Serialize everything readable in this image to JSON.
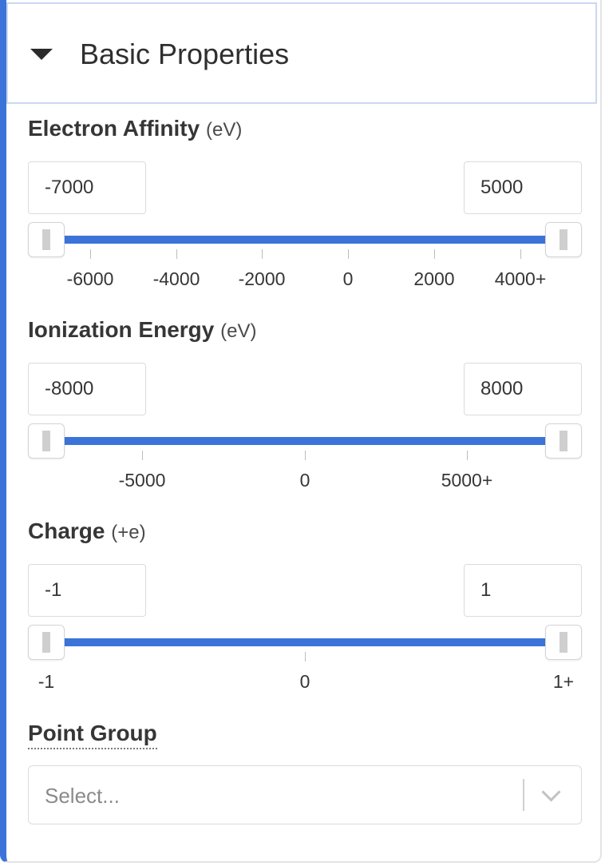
{
  "header": {
    "title": "Basic Properties"
  },
  "electron_affinity": {
    "label": "Electron Affinity",
    "unit": "(eV)",
    "min": "-7000",
    "max": "5000",
    "ticks": [
      "-6000",
      "-4000",
      "-2000",
      "0",
      "2000",
      "4000+"
    ]
  },
  "ionization_energy": {
    "label": "Ionization Energy",
    "unit": "(eV)",
    "min": "-8000",
    "max": "8000",
    "ticks": [
      "-5000",
      "0",
      "5000+"
    ]
  },
  "charge": {
    "label": "Charge",
    "unit": "(+e)",
    "min": "-1",
    "max": "1",
    "ticks": [
      "-1",
      "0",
      "1+"
    ]
  },
  "point_group": {
    "label": "Point Group",
    "placeholder": "Select..."
  },
  "colors": {
    "accent": "#3b73d9"
  }
}
